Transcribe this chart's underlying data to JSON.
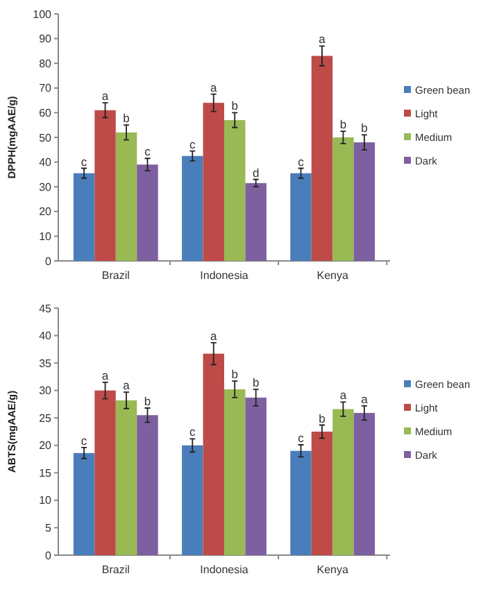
{
  "chart_data": [
    {
      "type": "bar",
      "ylabel": "DPPH(mgAAE/g)",
      "categories": [
        "Brazil",
        "Indonesia",
        "Kenya"
      ],
      "ylim": [
        0,
        100
      ],
      "yticks": [
        0,
        10,
        20,
        30,
        40,
        50,
        60,
        70,
        80,
        90,
        100
      ],
      "legend": "right",
      "series": [
        {
          "name": "Green bean",
          "color": "#4a7ebb",
          "values": [
            35.5,
            42.5,
            35.5
          ],
          "errors": [
            2,
            2,
            2
          ]
        },
        {
          "name": "Light",
          "color": "#be4b48",
          "values": [
            61,
            64,
            83
          ],
          "errors": [
            3,
            3.5,
            4
          ]
        },
        {
          "name": "Medium",
          "color": "#98b954",
          "values": [
            52,
            57,
            50
          ],
          "errors": [
            3,
            3,
            2.5
          ]
        },
        {
          "name": "Dark",
          "color": "#7d60a0",
          "values": [
            39,
            31.5,
            48
          ],
          "errors": [
            2.5,
            1.5,
            3
          ]
        }
      ],
      "annotations": [
        "c",
        "a",
        "b",
        "c",
        "c",
        "a",
        "b",
        "d",
        "c",
        "a",
        "b",
        "b"
      ]
    },
    {
      "type": "bar",
      "ylabel": "ABTS(mgAAE/g)",
      "categories": [
        "Brazil",
        "Indonesia",
        "Kenya"
      ],
      "ylim": [
        0,
        45
      ],
      "yticks": [
        0,
        5,
        10,
        15,
        20,
        25,
        30,
        35,
        40,
        45
      ],
      "legend": "right",
      "series": [
        {
          "name": "Green bean",
          "color": "#4a7ebb",
          "values": [
            18.6,
            20,
            19
          ],
          "errors": [
            1,
            1.2,
            1.1
          ]
        },
        {
          "name": "Light",
          "color": "#be4b48",
          "values": [
            30,
            36.7,
            22.5
          ],
          "errors": [
            1.5,
            2,
            1.2
          ]
        },
        {
          "name": "Medium",
          "color": "#98b954",
          "values": [
            28.2,
            30.2,
            26.6
          ],
          "errors": [
            1.5,
            1.5,
            1.3
          ]
        },
        {
          "name": "Dark",
          "color": "#7d60a0",
          "values": [
            25.5,
            28.7,
            25.9
          ],
          "errors": [
            1.3,
            1.5,
            1.3
          ]
        }
      ],
      "annotations": [
        "c",
        "a",
        "a",
        "b",
        "c",
        "a",
        "b",
        "b",
        "c",
        "b",
        "a",
        "a"
      ]
    }
  ]
}
